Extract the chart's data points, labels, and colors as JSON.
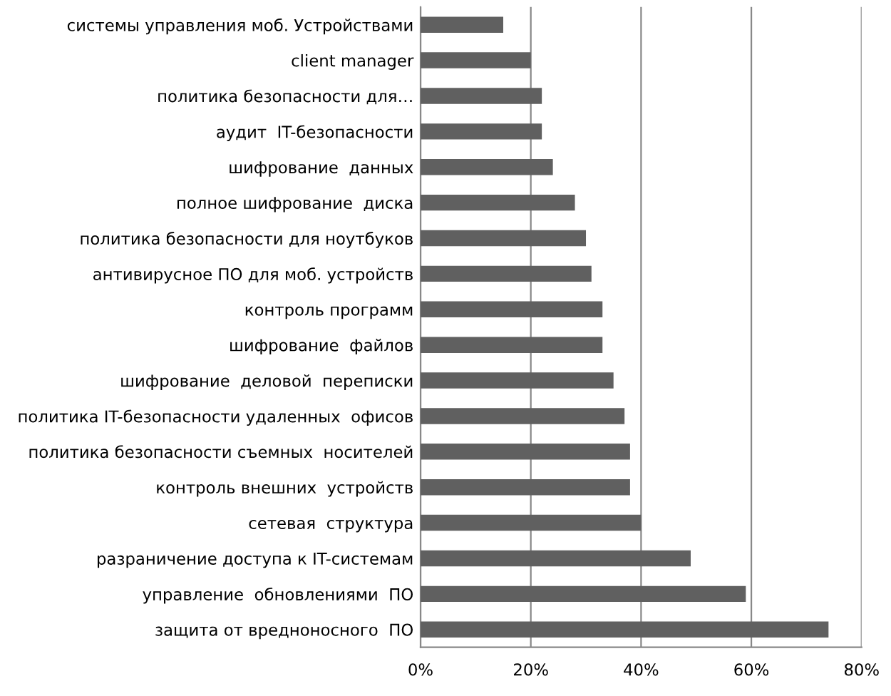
{
  "chart_data": {
    "type": "bar",
    "orientation": "horizontal",
    "categories": [
      "системы управления моб. Устройствами",
      "client manager",
      "политика безопасности для…",
      "аудит  IT-безопасности",
      "шифрование  данных",
      "полное шифрование  диска",
      "политика безопасности для ноутбуков",
      "антивирусное ПО для моб. устройств",
      "контроль программ",
      "шифрование  файлов",
      "шифрование  деловой  переписки",
      "политика IT-безопасности удаленных  офисов",
      "политика безопасности съемных  носителей",
      "контроль внешних  устройств",
      "сетевая  структура",
      "разраничение доступа к IT-системам",
      "управление  обновлениями  ПО",
      "защита от вредноносного  ПО"
    ],
    "values": [
      15,
      20,
      22,
      22,
      24,
      28,
      30,
      31,
      33,
      33,
      35,
      37,
      38,
      38,
      40,
      49,
      59,
      74
    ],
    "color": "#606060",
    "xlim": [
      0,
      80
    ],
    "xticks": [
      {
        "value": 0,
        "label": "0%"
      },
      {
        "value": 20,
        "label": "20%"
      },
      {
        "value": 40,
        "label": "40%"
      },
      {
        "value": 60,
        "label": "60%"
      },
      {
        "value": 80,
        "label": "80%"
      }
    ],
    "grid": "x"
  }
}
